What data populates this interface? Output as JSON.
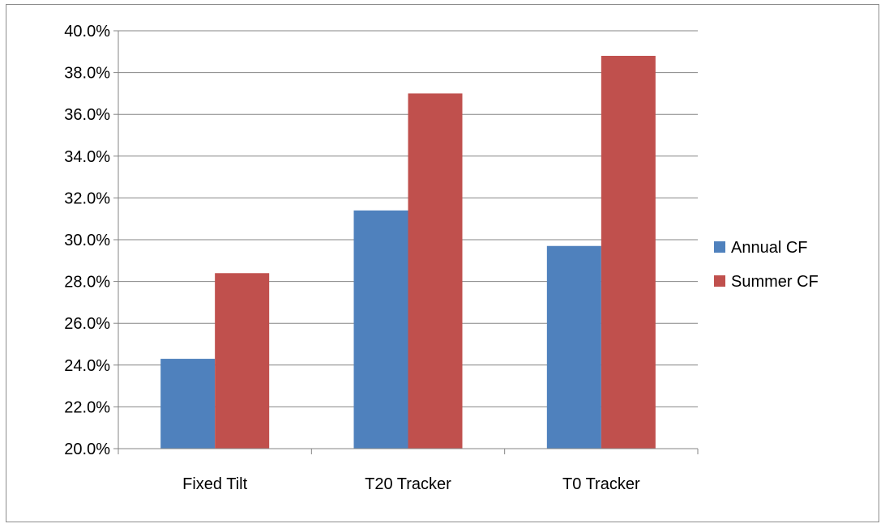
{
  "chart_data": {
    "type": "bar",
    "title": "",
    "xlabel": "",
    "ylabel": "",
    "categories": [
      "Fixed Tilt",
      "T20 Tracker",
      "T0 Tracker"
    ],
    "series": [
      {
        "name": "Annual CF",
        "color": "#4f81bd",
        "values": [
          24.3,
          31.4,
          29.7
        ]
      },
      {
        "name": "Summer CF",
        "color": "#c0504d",
        "values": [
          28.4,
          37.0,
          38.8
        ]
      }
    ],
    "ylim": [
      20.0,
      40.0
    ],
    "ytick_step": 2.0,
    "ytick_labels": [
      "20.0%",
      "22.0%",
      "24.0%",
      "26.0%",
      "28.0%",
      "30.0%",
      "32.0%",
      "34.0%",
      "36.0%",
      "38.0%",
      "40.0%"
    ],
    "grid": "horizontal",
    "legend_position": "right"
  }
}
